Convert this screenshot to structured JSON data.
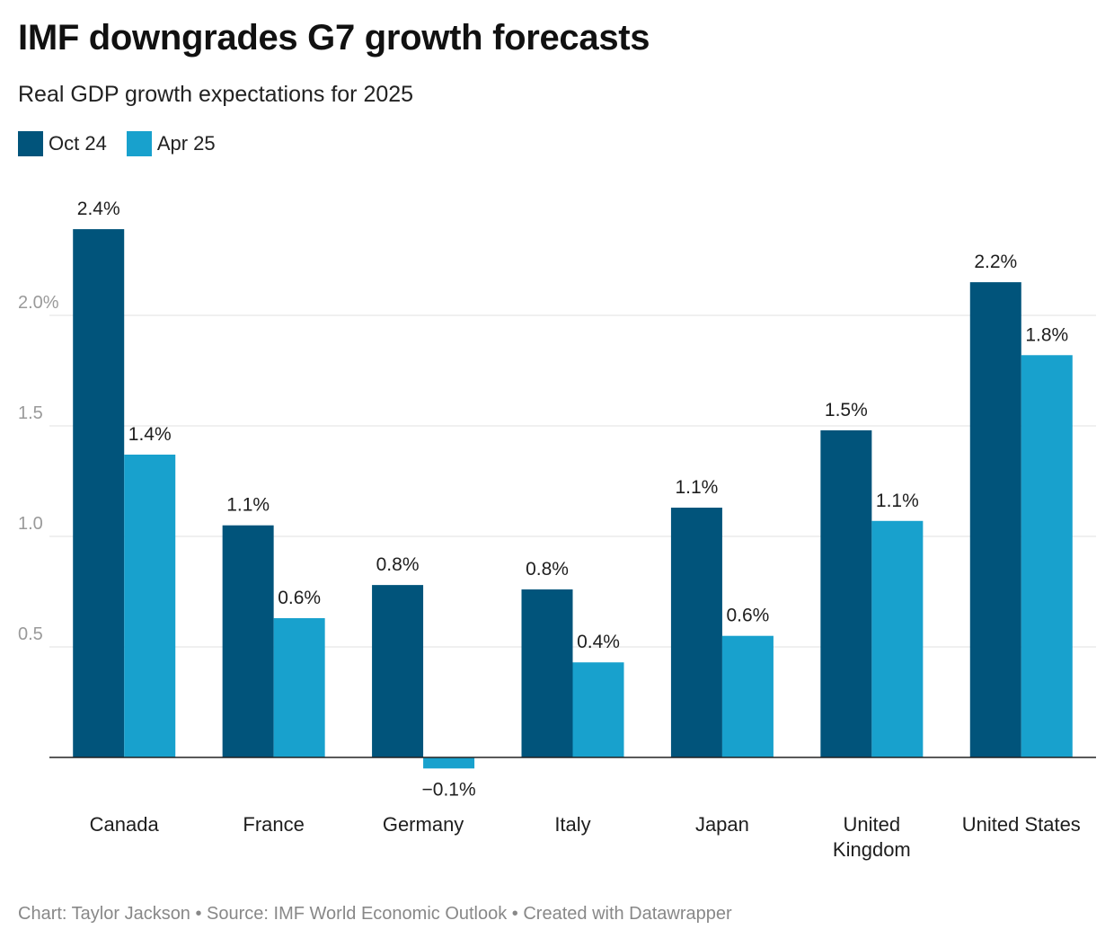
{
  "header": {
    "title": "IMF downgrades G7 growth forecasts",
    "subtitle": "Real GDP growth expectations for 2025"
  },
  "legend": [
    {
      "label": "Oct 24",
      "color": "#01547b"
    },
    {
      "label": "Apr 25",
      "color": "#18a1cd"
    }
  ],
  "footer": {
    "text": "Chart: Taylor Jackson • Source: IMF World Economic Outlook • Created with Datawrapper"
  },
  "chart_data": {
    "type": "bar",
    "categories": [
      [
        "Canada"
      ],
      [
        "France"
      ],
      [
        "Germany"
      ],
      [
        "Italy"
      ],
      [
        "Japan"
      ],
      [
        "United",
        "Kingdom"
      ],
      [
        "United States"
      ]
    ],
    "series": [
      {
        "name": "Oct 24",
        "color": "#01547b",
        "values": [
          2.39,
          1.05,
          0.78,
          0.76,
          1.13,
          1.48,
          2.15
        ],
        "labels": [
          "2.4%",
          "1.1%",
          "0.8%",
          "0.8%",
          "1.1%",
          "1.5%",
          "2.2%"
        ]
      },
      {
        "name": "Apr 25",
        "color": "#18a1cd",
        "values": [
          1.37,
          0.63,
          -0.05,
          0.43,
          0.55,
          1.07,
          1.82
        ],
        "labels": [
          "1.4%",
          "0.6%",
          "−0.1%",
          "0.4%",
          "0.6%",
          "1.1%",
          "1.8%"
        ]
      }
    ],
    "yticks": [
      {
        "value": 0.5,
        "label": "0.5"
      },
      {
        "value": 1.0,
        "label": "1.0"
      },
      {
        "value": 1.5,
        "label": "1.5"
      },
      {
        "value": 2.0,
        "label": "2.0%"
      }
    ],
    "ylim": [
      -0.1,
      2.6
    ],
    "grid": true,
    "legend_position": "top-left"
  }
}
